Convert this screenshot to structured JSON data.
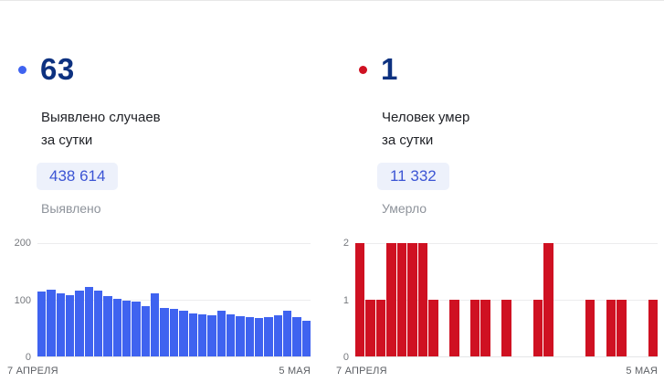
{
  "panels": [
    {
      "headline_value": "63",
      "title_line1": "Выявлено случаев",
      "title_line2": "за сутки",
      "total_value": "438 614",
      "total_label": "Выявлено",
      "dot_color": "#3f63f0"
    },
    {
      "headline_value": "1",
      "title_line1": "Человек умер",
      "title_line2": "за сутки",
      "total_value": "11 332",
      "total_label": "Умерло",
      "dot_color": "#cf1122"
    }
  ],
  "chart_data": [
    {
      "type": "bar",
      "title": "Выявлено случаев за сутки",
      "bar_color": "#3f63f0",
      "ylim": [
        0,
        200
      ],
      "yticks": [
        "200",
        "100",
        "0"
      ],
      "grid": true,
      "x_start_label": "7 АПРЕЛЯ",
      "x_end_label": "5 МАЯ",
      "values": [
        115,
        118,
        112,
        108,
        116,
        122,
        116,
        106,
        101,
        98,
        96,
        89,
        112,
        86,
        84,
        80,
        76,
        75,
        73,
        80,
        74,
        71,
        70,
        67,
        69,
        72,
        80,
        69,
        63
      ]
    },
    {
      "type": "bar",
      "title": "Человек умер за сутки",
      "bar_color": "#cf1122",
      "ylim": [
        0,
        2
      ],
      "yticks": [
        "2",
        "1",
        "0"
      ],
      "grid": true,
      "x_start_label": "7 АПРЕЛЯ",
      "x_end_label": "5 МАЯ",
      "values": [
        2,
        1,
        1,
        2,
        2,
        2,
        2,
        1,
        0,
        1,
        0,
        1,
        1,
        0,
        1,
        0,
        0,
        1,
        2,
        0,
        0,
        0,
        1,
        0,
        1,
        1,
        0,
        0,
        1
      ]
    }
  ]
}
